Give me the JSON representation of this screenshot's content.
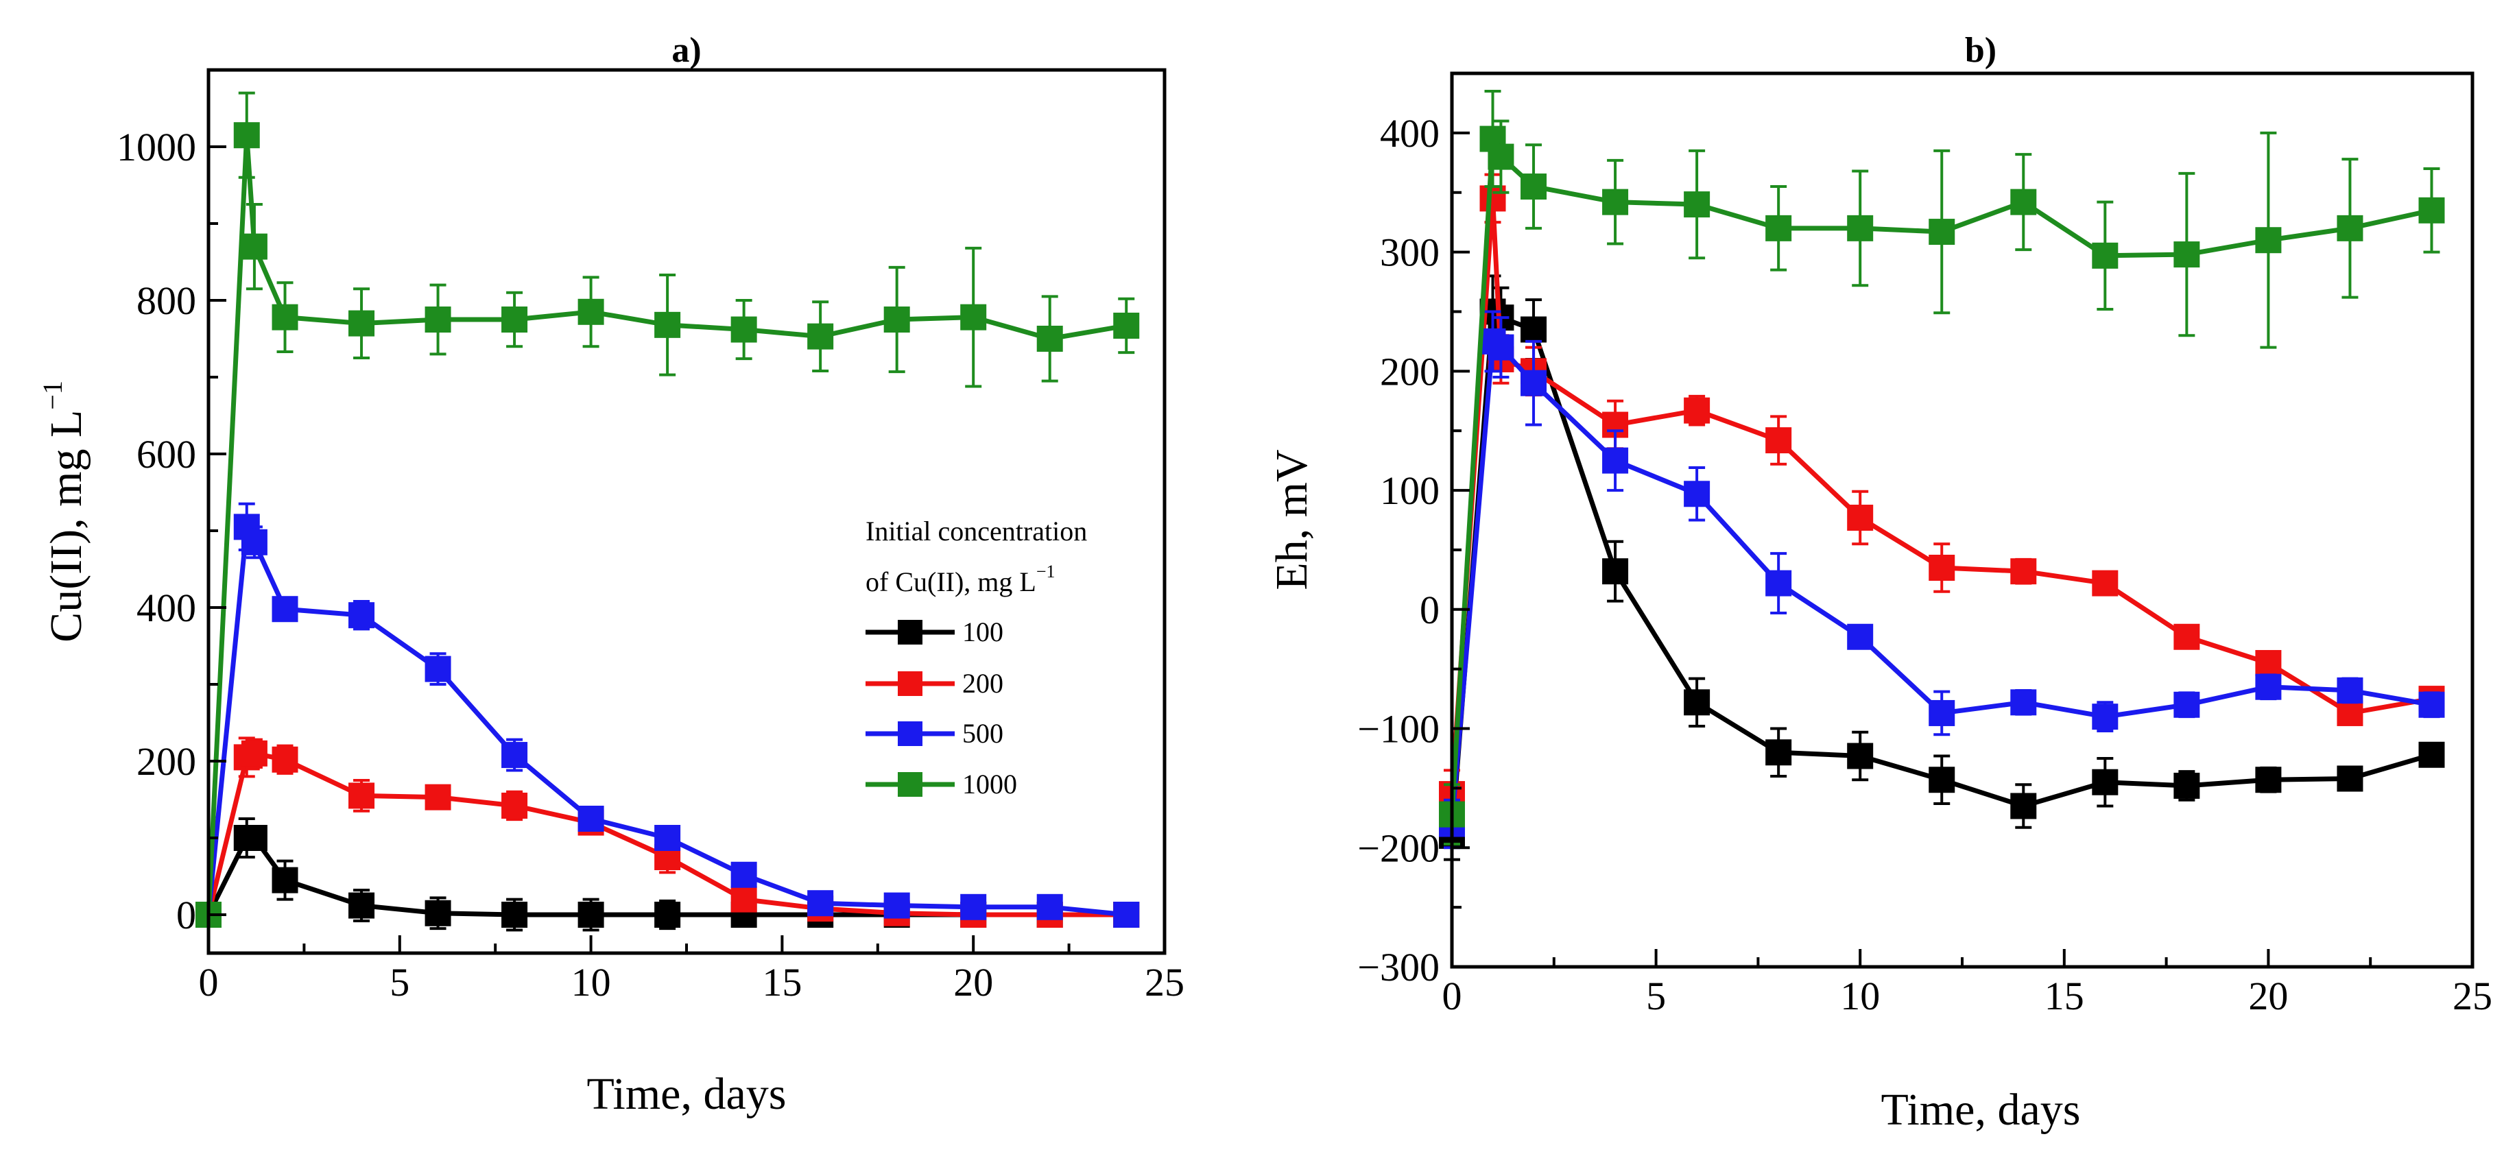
{
  "chart_data": [
    {
      "type": "line",
      "panel_label": "a)",
      "xlabel": "Time, days",
      "ylabel": "Cu(II), mg L",
      "ylabel_sup": "−1",
      "xlim": [
        0,
        25
      ],
      "ylim": [
        -50,
        1100
      ],
      "xticks": [
        0,
        5,
        10,
        15,
        20,
        25
      ],
      "yticks": [
        0,
        200,
        400,
        600,
        800,
        1000
      ],
      "legend": {
        "title_line1": "Initial concentration",
        "title_line2": "of Cu(II), mg L",
        "title_sup": "−1",
        "position": "center-right"
      },
      "x": [
        0,
        1,
        1.2,
        2,
        4,
        6,
        8,
        10,
        12,
        14,
        16,
        18,
        20,
        22,
        24
      ],
      "series": [
        {
          "name": "100",
          "color": "#000000",
          "values": [
            0,
            100,
            100,
            45,
            12,
            2,
            0,
            0,
            0,
            0,
            0,
            0,
            0,
            0,
            0
          ],
          "errors": [
            0,
            25,
            15,
            25,
            20,
            20,
            20,
            20,
            18,
            15,
            15,
            0,
            0,
            0,
            0
          ]
        },
        {
          "name": "200",
          "color": "#ee1111",
          "values": [
            0,
            205,
            210,
            202,
            155,
            153,
            142,
            120,
            75,
            20,
            8,
            2,
            0,
            0,
            0
          ],
          "errors": [
            0,
            25,
            18,
            18,
            20,
            12,
            18,
            15,
            20,
            10,
            8,
            0,
            0,
            0,
            0
          ]
        },
        {
          "name": "500",
          "color": "#1a1aee",
          "values": [
            0,
            505,
            485,
            398,
            390,
            320,
            208,
            125,
            100,
            52,
            15,
            12,
            10,
            10,
            0
          ],
          "errors": [
            0,
            30,
            20,
            15,
            18,
            20,
            20,
            12,
            10,
            8,
            8,
            6,
            6,
            6,
            0
          ]
        },
        {
          "name": "1000",
          "color": "#1e8c1e",
          "values": [
            0,
            1015,
            870,
            778,
            770,
            775,
            775,
            785,
            768,
            762,
            753,
            775,
            778,
            750,
            767
          ],
          "errors": [
            0,
            55,
            55,
            45,
            45,
            45,
            35,
            45,
            65,
            38,
            45,
            68,
            90,
            55,
            35
          ]
        }
      ]
    },
    {
      "type": "line",
      "panel_label": "b)",
      "xlabel": "Time, days",
      "ylabel": "Eh, mV",
      "xlim": [
        0,
        25
      ],
      "ylim": [
        -300,
        450
      ],
      "xticks": [
        0,
        5,
        10,
        15,
        20,
        25
      ],
      "yticks": [
        -300,
        -200,
        -100,
        0,
        100,
        200,
        300,
        400
      ],
      "x": [
        0,
        1,
        1.2,
        2,
        4,
        6,
        8,
        10,
        12,
        14,
        16,
        18,
        20,
        22,
        24
      ],
      "series": [
        {
          "name": "100",
          "color": "#000000",
          "values": [
            -190,
            250,
            245,
            235,
            32,
            -78,
            -120,
            -123,
            -143,
            -165,
            -145,
            -148,
            -143,
            -142,
            -122
          ],
          "errors": [
            20,
            30,
            25,
            25,
            25,
            20,
            20,
            20,
            20,
            18,
            20,
            12,
            10,
            8,
            8
          ]
        },
        {
          "name": "200",
          "color": "#ee1111",
          "values": [
            -155,
            345,
            210,
            200,
            155,
            167,
            142,
            77,
            35,
            32,
            22,
            -23,
            -45,
            -87,
            -75
          ],
          "errors": [
            20,
            20,
            20,
            20,
            20,
            12,
            20,
            22,
            20,
            10,
            8,
            8,
            8,
            8,
            8
          ]
        },
        {
          "name": "500",
          "color": "#1a1aee",
          "values": [
            -180,
            225,
            220,
            190,
            125,
            97,
            22,
            -23,
            -87,
            -78,
            -90,
            -80,
            -65,
            -68,
            -80
          ],
          "errors": [
            20,
            25,
            25,
            35,
            25,
            22,
            25,
            8,
            18,
            10,
            12,
            10,
            10,
            10,
            10
          ]
        },
        {
          "name": "1000",
          "color": "#1e8c1e",
          "values": [
            -172,
            395,
            380,
            355,
            342,
            340,
            320,
            320,
            317,
            342,
            297,
            298,
            310,
            320,
            335
          ],
          "errors": [
            25,
            40,
            30,
            35,
            35,
            45,
            35,
            48,
            68,
            40,
            45,
            68,
            90,
            58,
            35
          ]
        }
      ]
    }
  ]
}
